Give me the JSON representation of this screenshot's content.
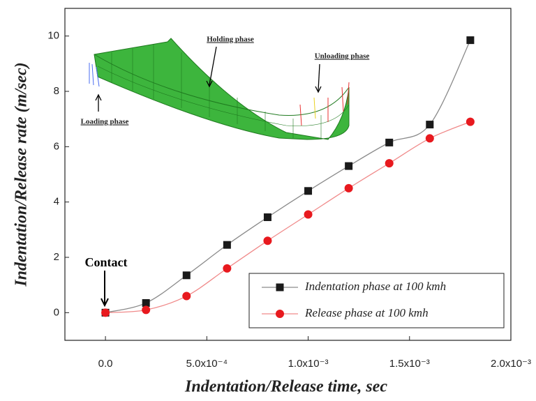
{
  "chart_data": {
    "type": "line",
    "x_label": "Indentation/Release time, sec",
    "y_label": "Indentation/Release rate (m/sec)",
    "x": [
      0,
      0.0002,
      0.0004,
      0.0006,
      0.0008,
      0.001,
      0.0012,
      0.0014,
      0.0016,
      0.0018
    ],
    "series": [
      {
        "name": "Indentation phase at 100 kmh",
        "color": "#1a1a1a",
        "line_color": "#8a8a8a",
        "marker": "square",
        "values": [
          0,
          0.35,
          1.35,
          2.45,
          3.45,
          4.4,
          5.3,
          6.15,
          6.8,
          9.85
        ]
      },
      {
        "name": "Release phase at 100 kmh",
        "color": "#e8191e",
        "line_color": "#f08a8a",
        "marker": "circle",
        "values": [
          0,
          0.1,
          0.6,
          1.6,
          2.6,
          3.55,
          4.5,
          5.4,
          6.3,
          6.9
        ]
      }
    ],
    "xlim": [
      -0.0002,
      0.002
    ],
    "ylim": [
      -1,
      11
    ],
    "xticks": [
      {
        "value": 0,
        "label": "0.0"
      },
      {
        "value": 0.0005,
        "label": "5.0x10⁻⁴"
      },
      {
        "value": 0.001,
        "label": "1.0x10⁻³"
      },
      {
        "value": 0.0015,
        "label": "1.5x10⁻³"
      },
      {
        "value": 0.002,
        "label": "2.0x10⁻³"
      }
    ],
    "yticks": [
      0,
      2,
      4,
      6,
      8,
      10
    ],
    "legend": "lower right",
    "annotations": [
      "Contact",
      "Holding phase",
      "Unloading phase",
      "Loading phase"
    ]
  }
}
